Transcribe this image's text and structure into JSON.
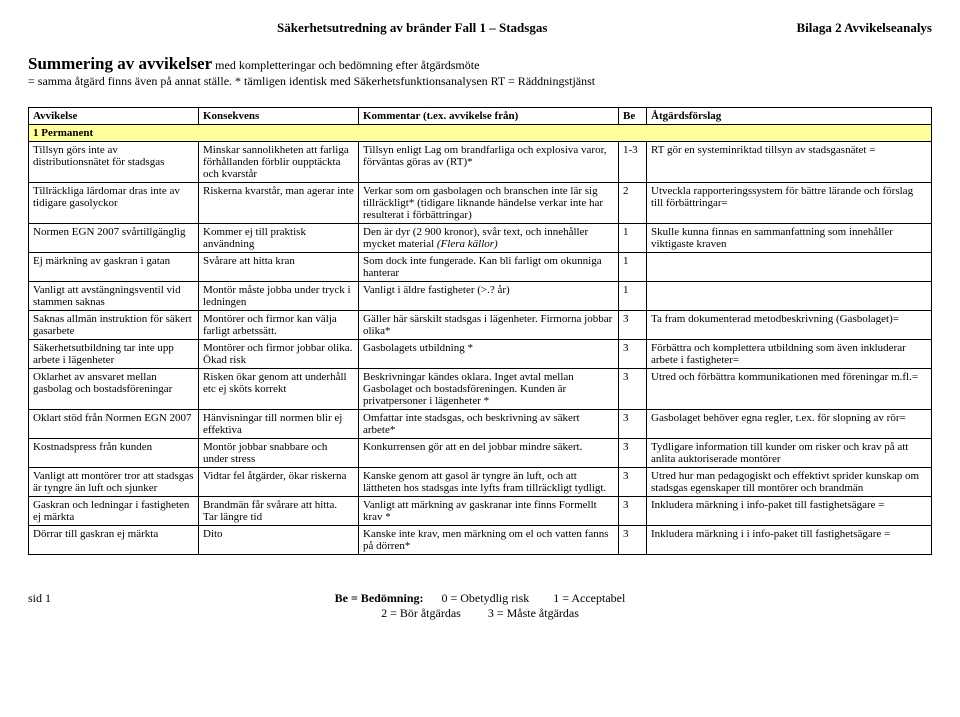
{
  "header": {
    "left": "Säkerhetsutredning av bränder Fall 1 – Stadsgas",
    "right": "Bilaga 2  Avvikelseanalys"
  },
  "title": {
    "main": "Summering av avvikelser",
    "sub": " med kompletteringar och bedömning efter åtgärdsmöte",
    "line2": "= samma åtgärd finns även på annat ställe.   * tämligen identisk med Säkerhetsfunktionsanalysen   RT = Räddningstjänst"
  },
  "columns": [
    "Avvikelse",
    "Konsekvens",
    "Kommentar (t.ex. avvikelse från)",
    "Be",
    "Åtgärdsförslag"
  ],
  "section": "1  Permanent",
  "rows": [
    {
      "avvikelse": "Tillsyn görs inte av distributionsnätet för stadsgas",
      "konsekvens": "Minskar sannolikheten att farliga förhållanden förblir oupptäckta och kvarstår",
      "kommentar": "Tillsyn enligt Lag om brandfarliga och explosiva varor, förväntas göras av (RT)*",
      "be": "1-3",
      "atgard": "RT gör en systeminriktad tillsyn av stadsgasnätet ="
    },
    {
      "avvikelse": "Tillräckliga lärdomar dras inte av tidigare gasolyckor",
      "konsekvens": "Riskerna kvarstår, man agerar inte",
      "kommentar": "Verkar som om gasbolagen och branschen inte lär sig tillräckligt* (tidigare liknande händelse verkar inte har resulterat i förbättringar)",
      "be": "2",
      "atgard": "Utveckla rapporteringssystem för bättre lärande och förslag till förbättringar="
    },
    {
      "avvikelse": "Normen EGN 2007 svårtillgänglig",
      "konsekvens": "Kommer ej till praktisk användning",
      "kommentar_html": "Den är dyr (2 900 kronor), svår text, och innehåller mycket material <span class='italic'>(Flera källor)</span>",
      "be": "1",
      "atgard": "Skulle kunna finnas en sammanfattning som innehåller viktigaste kraven"
    },
    {
      "avvikelse": "Ej märkning av gaskran i gatan",
      "konsekvens": "Svårare att hitta kran",
      "kommentar": "Som dock inte fungerade. Kan bli farligt om okunniga hanterar",
      "be": "1",
      "atgard": ""
    },
    {
      "avvikelse": "Vanligt att avstängningsventil vid stammen saknas",
      "konsekvens": "Montör måste jobba under tryck i ledningen",
      "kommentar": "Vanligt i äldre fastigheter (>.? år)",
      "be": "1",
      "atgard": ""
    },
    {
      "avvikelse": "Saknas allmän instruktion för säkert gasarbete",
      "konsekvens": "Montörer och firmor kan välja farligt arbetssätt.",
      "kommentar": "Gäller här särskilt stadsgas i lägenheter. Firmorna jobbar olika*",
      "be": "3",
      "atgard": "Ta fram dokumenterad metodbeskrivning (Gasbolaget)="
    },
    {
      "avvikelse": "Säkerhetsutbildning tar inte upp arbete i lägenheter",
      "konsekvens": "Montörer och firmor jobbar olika. Ökad risk",
      "kommentar": "Gasbolagets utbildning *",
      "be": "3",
      "atgard": "Förbättra och komplettera utbildning som även inkluderar arbete i fastigheter="
    },
    {
      "avvikelse": "Oklarhet av ansvaret mellan gasbolag och bostadsföreningar",
      "konsekvens": "Risken ökar genom att underhåll etc ej sköts korrekt",
      "kommentar": "Beskrivningar kändes oklara. Inget avtal mellan Gasbolaget och bostadsföreningen. Kunden är privatpersoner i lägenheter *",
      "be": "3",
      "atgard": "Utred och förbättra kommunikationen med föreningar m.fl.="
    },
    {
      "avvikelse": "Oklart stöd från Normen EGN 2007",
      "konsekvens": "Hänvisningar till normen blir ej effektiva",
      "kommentar": "Omfattar inte stadsgas, och beskrivning av säkert arbete*",
      "be": "3",
      "atgard": "Gasbolaget behöver egna regler, t.ex. för slopning av rör="
    },
    {
      "avvikelse": "Kostnadspress från kunden",
      "konsekvens": "Montör jobbar snabbare och under stress",
      "kommentar": "Konkurrensen gör att en del jobbar mindre säkert.",
      "be": "3",
      "atgard": "Tydligare information till kunder om risker och krav på att anlita auktoriserade montörer"
    },
    {
      "avvikelse": "Vanligt att montörer tror att stadsgas är tyngre än luft och sjunker",
      "konsekvens": "Vidtar fel åtgärder, ökar riskerna",
      "kommentar": "Kanske genom att gasol är tyngre än luft, och att lättheten hos stadsgas inte lyfts fram tillräckligt tydligt.",
      "be": "3",
      "atgard": "Utred hur man pedagogiskt och effektivt sprider kunskap om stadsgas egenskaper till montörer och brandmän"
    },
    {
      "avvikelse": "Gaskran och ledningar i fastigheten ej märkta",
      "konsekvens": "Brandmän får svårare att hitta. Tar längre tid",
      "kommentar": "Vanligt att märkning av gaskranar inte finns Formellt krav *",
      "be": "3",
      "atgard": "Inkludera märkning i info-paket till fastighetsägare ="
    },
    {
      "avvikelse": "Dörrar till gaskran ej märkta",
      "konsekvens": "Dito",
      "kommentar": "Kanske inte krav, men märkning om el och vatten fanns på dörren*",
      "be": "3",
      "atgard": "Inkludera märkning i i info-paket till fastighetsägare ="
    }
  ],
  "footer": {
    "left": "sid 1",
    "center_label": "Be = Bedömning:",
    "legend": "0 = Obetydlig risk        1 = Acceptabel\n2 = Bör åtgärdas         3 = Måste åtgärdas"
  }
}
